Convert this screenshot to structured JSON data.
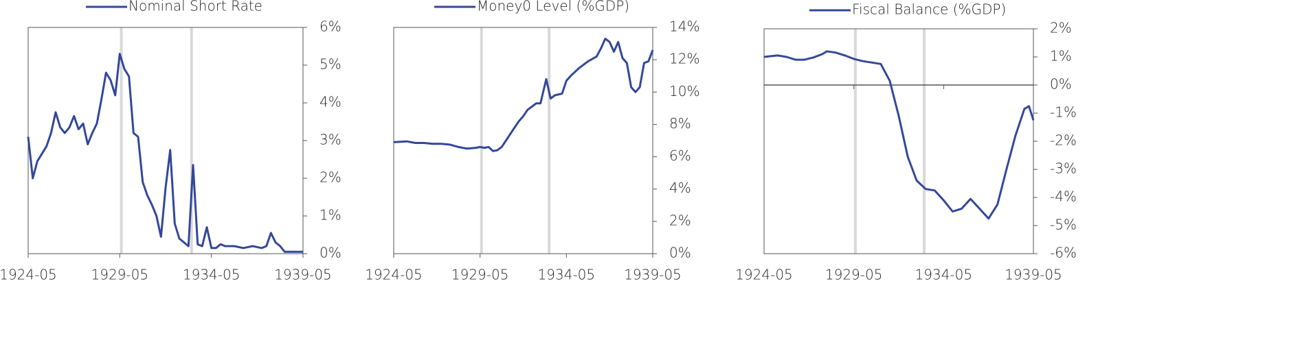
{
  "chart_data": [
    {
      "type": "line",
      "series": [
        {
          "name": "Nominal Short Rate",
          "color": "#33479a",
          "x": [
            "1924-05",
            "1924-08",
            "1924-11",
            "1925-02",
            "1925-05",
            "1925-08",
            "1925-11",
            "1926-02",
            "1926-05",
            "1926-08",
            "1926-11",
            "1927-02",
            "1927-05",
            "1927-08",
            "1927-11",
            "1928-02",
            "1928-05",
            "1928-08",
            "1928-11",
            "1929-02",
            "1929-05",
            "1929-08",
            "1929-11",
            "1930-02",
            "1930-05",
            "1930-08",
            "1930-11",
            "1931-02",
            "1931-05",
            "1931-08",
            "1931-11",
            "1932-02",
            "1932-05",
            "1932-08",
            "1932-11",
            "1933-02",
            "1933-05",
            "1933-08",
            "1933-11",
            "1934-02",
            "1934-05",
            "1934-08",
            "1934-11",
            "1935-02",
            "1935-08",
            "1936-02",
            "1936-08",
            "1937-02",
            "1937-05",
            "1937-08",
            "1937-11",
            "1938-02",
            "1938-05",
            "1938-11",
            "1939-05"
          ],
          "values": [
            3.1,
            2.0,
            2.45,
            2.65,
            2.85,
            3.2,
            3.75,
            3.35,
            3.2,
            3.35,
            3.65,
            3.3,
            3.45,
            2.9,
            3.2,
            3.45,
            4.1,
            4.8,
            4.6,
            4.2,
            5.3,
            4.9,
            4.7,
            3.2,
            3.1,
            1.9,
            1.55,
            1.3,
            1.0,
            0.45,
            1.75,
            2.75,
            0.8,
            0.4,
            0.3,
            0.2,
            2.35,
            0.25,
            0.2,
            0.7,
            0.15,
            0.15,
            0.25,
            0.2,
            0.2,
            0.15,
            0.2,
            0.15,
            0.2,
            0.55,
            0.3,
            0.2,
            0.05,
            0.05,
            0.05
          ]
        }
      ],
      "xlim": [
        "1924-05",
        "1939-05"
      ],
      "xticks": [
        "1924-05",
        "1929-05",
        "1934-05",
        "1939-05"
      ],
      "ylim": [
        0,
        6
      ],
      "yticks": [
        {
          "value": 0,
          "label": "0%"
        },
        {
          "value": 1,
          "label": "1%"
        },
        {
          "value": 2,
          "label": "2%"
        },
        {
          "value": 3,
          "label": "3%"
        },
        {
          "value": 4,
          "label": "4%"
        },
        {
          "value": 5,
          "label": "5%"
        },
        {
          "value": 6,
          "label": "6%"
        }
      ],
      "highlight_dates": [
        "1929-06",
        "1933-04"
      ]
    },
    {
      "type": "line",
      "series": [
        {
          "name": "Money0 Level (%GDP)",
          "color": "#33479a",
          "x": [
            "1924-05",
            "1925-02",
            "1925-08",
            "1926-02",
            "1926-08",
            "1927-02",
            "1927-08",
            "1928-02",
            "1928-08",
            "1929-02",
            "1929-05",
            "1929-08",
            "1929-11",
            "1930-02",
            "1930-05",
            "1930-08",
            "1930-11",
            "1931-02",
            "1931-05",
            "1931-08",
            "1931-11",
            "1932-02",
            "1932-05",
            "1932-08",
            "1932-11",
            "1933-03",
            "1933-06",
            "1933-09",
            "1934-02",
            "1934-05",
            "1934-08",
            "1935-02",
            "1935-08",
            "1936-02",
            "1936-05",
            "1936-08",
            "1936-11",
            "1937-02",
            "1937-05",
            "1937-08",
            "1937-11",
            "1938-02",
            "1938-05",
            "1938-08",
            "1938-11",
            "1939-02",
            "1939-05"
          ],
          "values": [
            6.9,
            6.95,
            6.85,
            6.85,
            6.8,
            6.8,
            6.75,
            6.6,
            6.5,
            6.55,
            6.6,
            6.55,
            6.6,
            6.35,
            6.4,
            6.6,
            7.0,
            7.4,
            7.8,
            8.2,
            8.5,
            8.9,
            9.1,
            9.3,
            9.3,
            10.8,
            9.6,
            9.8,
            9.9,
            10.7,
            11.0,
            11.5,
            11.9,
            12.2,
            12.7,
            13.3,
            13.1,
            12.5,
            13.1,
            12.1,
            11.8,
            10.3,
            10.0,
            10.3,
            11.8,
            11.9,
            12.6
          ]
        }
      ],
      "xlim": [
        "1924-05",
        "1939-05"
      ],
      "xticks": [
        "1924-05",
        "1929-05",
        "1934-05",
        "1939-05"
      ],
      "ylim": [
        0,
        14
      ],
      "yticks": [
        {
          "value": 0,
          "label": "0%"
        },
        {
          "value": 2,
          "label": "2%"
        },
        {
          "value": 4,
          "label": "4%"
        },
        {
          "value": 6,
          "label": "6%"
        },
        {
          "value": 8,
          "label": "8%"
        },
        {
          "value": 10,
          "label": "10%"
        },
        {
          "value": 12,
          "label": "12%"
        },
        {
          "value": 14,
          "label": "14%"
        }
      ],
      "highlight_dates": [
        "1929-06",
        "1933-05"
      ]
    },
    {
      "type": "line",
      "series": [
        {
          "name": "Fiscal Balance (%GDP)",
          "color": "#33479a",
          "x": [
            "1924-05",
            "1925-02",
            "1925-08",
            "1926-02",
            "1926-08",
            "1927-02",
            "1927-08",
            "1927-11",
            "1928-05",
            "1928-11",
            "1929-05",
            "1929-11",
            "1930-05",
            "1930-11",
            "1931-05",
            "1931-11",
            "1932-05",
            "1932-11",
            "1933-05",
            "1933-11",
            "1934-05",
            "1934-11",
            "1935-05",
            "1935-11",
            "1936-05",
            "1936-11",
            "1937-05",
            "1937-11",
            "1938-05",
            "1938-11",
            "1939-02",
            "1939-05"
          ],
          "values": [
            1.0,
            1.05,
            1.0,
            0.9,
            0.9,
            0.98,
            1.1,
            1.2,
            1.15,
            1.05,
            0.93,
            0.85,
            0.8,
            0.75,
            0.15,
            -1.1,
            -2.55,
            -3.4,
            -3.7,
            -3.75,
            -4.1,
            -4.5,
            -4.4,
            -4.05,
            -4.4,
            -4.75,
            -4.25,
            -3.0,
            -1.8,
            -0.85,
            -0.75,
            -1.25
          ]
        }
      ],
      "xlim": [
        "1924-05",
        "1939-05"
      ],
      "xticks": [
        "1924-05",
        "1929-05",
        "1934-05",
        "1939-05"
      ],
      "ylim": [
        -6,
        2
      ],
      "yticks": [
        {
          "value": -6,
          "label": "-6%"
        },
        {
          "value": -5,
          "label": "-5%"
        },
        {
          "value": -4,
          "label": "-4%"
        },
        {
          "value": -3,
          "label": "-3%"
        },
        {
          "value": -2,
          "label": "-2%"
        },
        {
          "value": -1,
          "label": "-1%"
        },
        {
          "value": 0,
          "label": "0%"
        },
        {
          "value": 1,
          "label": "1%"
        },
        {
          "value": 2,
          "label": "2%"
        }
      ],
      "highlight_dates": [
        "1929-06",
        "1933-04"
      ]
    }
  ]
}
